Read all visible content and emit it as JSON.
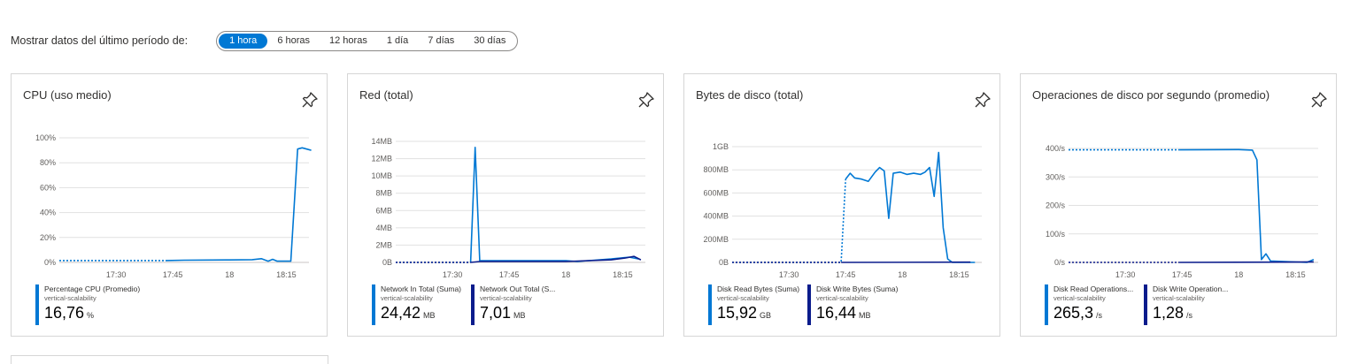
{
  "time_range": {
    "label": "Mostrar datos del último período de:",
    "options": [
      "1 hora",
      "6 horas",
      "12 horas",
      "1 día",
      "7 días",
      "30 días"
    ],
    "selected": "1 hora"
  },
  "colors": {
    "accent": "#0078d4",
    "series_light": "#0078d4",
    "series_dark": "#0b1c8c",
    "grid": "#e1e1e1"
  },
  "icons": {
    "pin": "pin-icon"
  },
  "tiles": [
    {
      "title": "CPU (uso medio)",
      "legend": [
        {
          "name": "Percentage CPU (Promedio)",
          "resource": "vertical-scalability",
          "value": "16,76",
          "unit": "%",
          "color": "#0078d4"
        }
      ]
    },
    {
      "title": "Red (total)",
      "legend": [
        {
          "name": "Network In Total (Suma)",
          "resource": "vertical-scalability",
          "value": "24,42",
          "unit": "MB",
          "color": "#0078d4"
        },
        {
          "name": "Network Out Total (S...",
          "resource": "vertical-scalability",
          "value": "7,01",
          "unit": "MB",
          "color": "#0b1c8c"
        }
      ]
    },
    {
      "title": "Bytes de disco (total)",
      "legend": [
        {
          "name": "Disk Read Bytes (Suma)",
          "resource": "vertical-scalability",
          "value": "15,92",
          "unit": "GB",
          "color": "#0078d4"
        },
        {
          "name": "Disk Write Bytes (Suma)",
          "resource": "vertical-scalability",
          "value": "16,44",
          "unit": "MB",
          "color": "#0b1c8c"
        }
      ]
    },
    {
      "title": "Operaciones de disco por segundo (promedio)",
      "legend": [
        {
          "name": "Disk Read Operations...",
          "resource": "vertical-scalability",
          "value": "265,3",
          "unit": "/s",
          "color": "#0078d4"
        },
        {
          "name": "Disk Write Operation...",
          "resource": "vertical-scalability",
          "value": "1,28",
          "unit": "/s",
          "color": "#0b1c8c"
        }
      ]
    }
  ],
  "chart_data": [
    {
      "type": "line",
      "title": "CPU (uso medio)",
      "x_ticks": [
        "17:30",
        "17:45",
        "18",
        "18:15"
      ],
      "y_ticks": [
        "0%",
        "20%",
        "40%",
        "60%",
        "80%",
        "100%"
      ],
      "ylim": [
        0,
        100
      ],
      "xlim": [
        17.25,
        18.35
      ],
      "series": [
        {
          "name": "Percentage CPU (Promedio)",
          "color": "#0078d4",
          "dotted_until": 17.72,
          "points": [
            [
              17.25,
              1.5
            ],
            [
              17.72,
              1.5
            ],
            [
              17.8,
              1.8
            ],
            [
              18,
              2
            ],
            [
              18.1,
              2.2
            ],
            [
              18.14,
              3
            ],
            [
              18.17,
              1
            ],
            [
              18.19,
              2.5
            ],
            [
              18.21,
              1
            ],
            [
              18.27,
              1
            ],
            [
              18.3,
              91
            ],
            [
              18.32,
              92
            ],
            [
              18.34,
              91
            ],
            [
              18.36,
              90
            ]
          ]
        }
      ]
    },
    {
      "type": "line",
      "title": "Red (total)",
      "x_ticks": [
        "17:30",
        "17:45",
        "18",
        "18:15"
      ],
      "y_ticks": [
        "0B",
        "2MB",
        "4MB",
        "6MB",
        "8MB",
        "10MB",
        "12MB",
        "14MB"
      ],
      "ylim": [
        0,
        14
      ],
      "xlim": [
        17.25,
        18.35
      ],
      "series": [
        {
          "name": "Network In Total (Suma)",
          "color": "#0078d4",
          "dotted_until": 17.58,
          "points": [
            [
              17.25,
              0
            ],
            [
              17.58,
              0
            ],
            [
              17.6,
              13.3
            ],
            [
              17.62,
              0.2
            ],
            [
              17.75,
              0.2
            ],
            [
              18.0,
              0.2
            ],
            [
              18.05,
              0.1
            ],
            [
              18.1,
              0.2
            ],
            [
              18.2,
              0.4
            ],
            [
              18.28,
              0.6
            ],
            [
              18.32,
              0.4
            ]
          ]
        },
        {
          "name": "Network Out Total (S...",
          "color": "#0b1c8c",
          "dotted_until": 17.58,
          "points": [
            [
              17.25,
              0
            ],
            [
              17.58,
              0
            ],
            [
              17.62,
              0.1
            ],
            [
              18.0,
              0.1
            ],
            [
              18.2,
              0.3
            ],
            [
              18.26,
              0.5
            ],
            [
              18.3,
              0.7
            ],
            [
              18.33,
              0.3
            ]
          ]
        }
      ]
    },
    {
      "type": "line",
      "title": "Bytes de disco (total)",
      "x_ticks": [
        "17:30",
        "17:45",
        "18",
        "18:15"
      ],
      "y_ticks": [
        "0B",
        "200MB",
        "400MB",
        "600MB",
        "800MB",
        "1GB"
      ],
      "ylim": [
        0,
        1000
      ],
      "xlim": [
        17.25,
        18.35
      ],
      "series": [
        {
          "name": "Disk Read Bytes (Suma)",
          "color": "#0078d4",
          "dotted_until": 17.75,
          "points": [
            [
              17.25,
              0
            ],
            [
              17.73,
              0
            ],
            [
              17.75,
              720
            ],
            [
              17.77,
              770
            ],
            [
              17.79,
              730
            ],
            [
              17.82,
              720
            ],
            [
              17.85,
              700
            ],
            [
              17.88,
              780
            ],
            [
              17.9,
              820
            ],
            [
              17.92,
              790
            ],
            [
              17.94,
              380
            ],
            [
              17.96,
              770
            ],
            [
              17.99,
              780
            ],
            [
              18.02,
              760
            ],
            [
              18.05,
              770
            ],
            [
              18.08,
              760
            ],
            [
              18.1,
              780
            ],
            [
              18.12,
              820
            ],
            [
              18.14,
              570
            ],
            [
              18.16,
              950
            ],
            [
              18.18,
              300
            ],
            [
              18.2,
              30
            ],
            [
              18.22,
              0
            ],
            [
              18.32,
              0
            ]
          ]
        },
        {
          "name": "Disk Write Bytes (Suma)",
          "color": "#0b1c8c",
          "dotted_until": 17.73,
          "points": [
            [
              17.25,
              0
            ],
            [
              17.73,
              0
            ],
            [
              18.3,
              2
            ]
          ]
        }
      ]
    },
    {
      "type": "line",
      "title": "Operaciones de disco por segundo (promedio)",
      "x_ticks": [
        "17:30",
        "17:45",
        "18",
        "18:15"
      ],
      "y_ticks": [
        "0/s",
        "100/s",
        "200/s",
        "300/s",
        "400/s"
      ],
      "ylim": [
        0,
        400
      ],
      "xlim": [
        17.25,
        18.35
      ],
      "series": [
        {
          "name": "Disk Read Operations...",
          "color": "#0078d4",
          "dotted_until": 17.74,
          "points": [
            [
              17.25,
              395
            ],
            [
              17.74,
              395
            ],
            [
              18.0,
              396
            ],
            [
              18.06,
              394
            ],
            [
              18.08,
              360
            ],
            [
              18.1,
              10
            ],
            [
              18.12,
              30
            ],
            [
              18.14,
              5
            ],
            [
              18.3,
              0
            ],
            [
              18.33,
              10
            ]
          ]
        },
        {
          "name": "Disk Write Operation...",
          "color": "#0b1c8c",
          "dotted_until": 17.74,
          "points": [
            [
              17.25,
              0
            ],
            [
              17.74,
              0
            ],
            [
              18.2,
              1
            ],
            [
              18.33,
              2
            ]
          ]
        }
      ]
    }
  ]
}
